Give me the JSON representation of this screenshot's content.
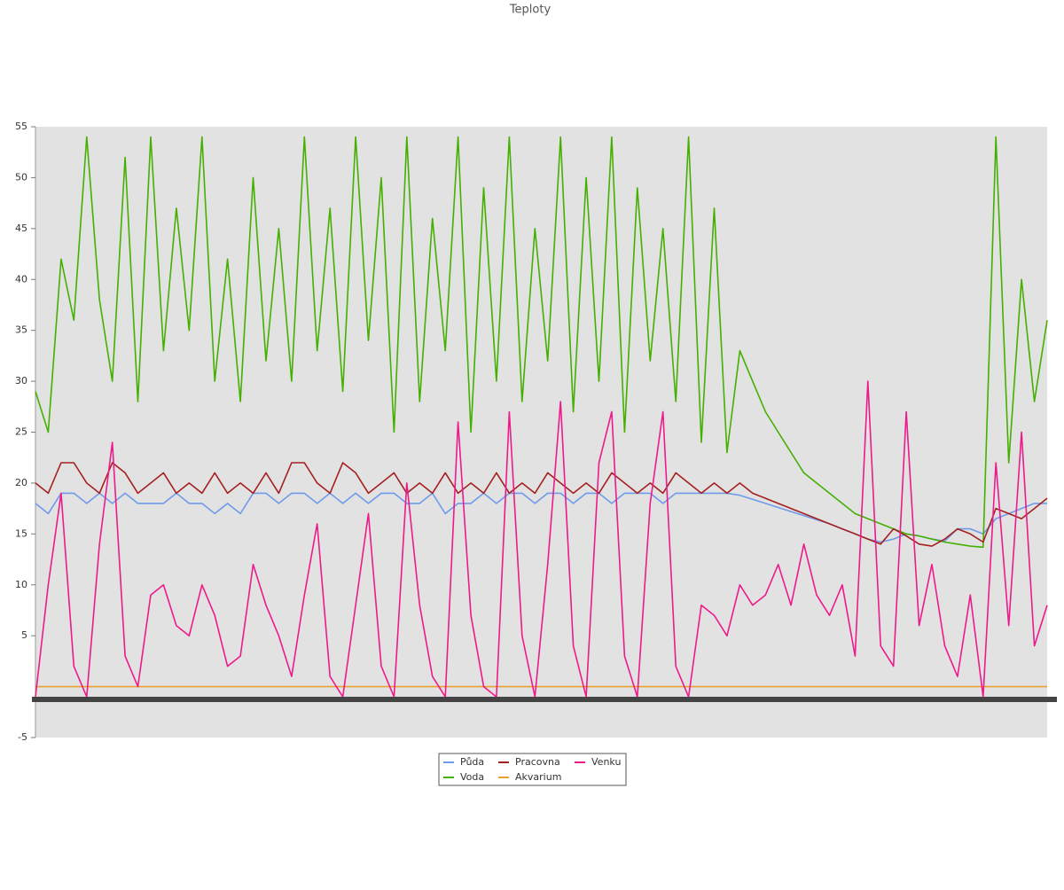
{
  "chart_data": {
    "type": "line",
    "title": "Teploty",
    "ylim": [
      -5,
      55
    ],
    "yticks": [
      -5,
      5,
      10,
      15,
      20,
      25,
      30,
      35,
      40,
      45,
      50,
      55
    ],
    "legend": "bottom",
    "series": [
      {
        "name": "Půda",
        "color": "#6f9bea",
        "values": [
          18,
          17,
          19,
          19,
          18,
          19,
          18,
          19,
          18,
          18,
          18,
          19,
          18,
          18,
          17,
          18,
          17,
          19,
          19,
          18,
          19,
          19,
          18,
          19,
          18,
          19,
          18,
          19,
          19,
          18,
          18,
          19,
          17,
          18,
          18,
          19,
          18,
          19,
          19,
          18,
          19,
          19,
          18,
          19,
          19,
          18,
          19,
          19,
          19,
          18,
          19,
          19,
          19,
          19,
          19,
          18.8,
          18.4,
          18,
          17.6,
          17.2,
          16.8,
          16.4,
          16,
          15.5,
          15,
          14.5,
          14.2,
          14.5,
          15,
          14.8,
          14.5,
          14.3,
          15.5,
          15.5,
          15,
          16.5,
          17,
          17.5,
          18,
          18
        ]
      },
      {
        "name": "Voda",
        "color": "#44b000",
        "values": [
          29,
          25,
          42,
          36,
          54,
          38,
          30,
          52,
          28,
          54,
          33,
          47,
          35,
          54,
          30,
          42,
          28,
          50,
          32,
          45,
          30,
          54,
          33,
          47,
          29,
          54,
          34,
          50,
          25,
          54,
          28,
          46,
          33,
          54,
          25,
          49,
          30,
          54,
          28,
          45,
          32,
          54,
          27,
          50,
          30,
          54,
          25,
          49,
          32,
          45,
          28,
          54,
          24,
          47,
          23,
          33,
          30,
          27,
          25,
          23,
          21,
          20,
          19,
          18,
          17,
          16.5,
          16,
          15.5,
          15,
          14.8,
          14.5,
          14.2,
          14,
          13.8,
          13.7,
          54,
          22,
          40,
          28,
          36
        ]
      },
      {
        "name": "Pracovna",
        "color": "#a52020",
        "values": [
          20,
          19,
          22,
          22,
          20,
          19,
          22,
          21,
          19,
          20,
          21,
          19,
          20,
          19,
          21,
          19,
          20,
          19,
          21,
          19,
          22,
          22,
          20,
          19,
          22,
          21,
          19,
          20,
          21,
          19,
          20,
          19,
          21,
          19,
          20,
          19,
          21,
          19,
          20,
          19,
          21,
          20,
          19,
          20,
          19,
          21,
          20,
          19,
          20,
          19,
          21,
          20,
          19,
          20,
          19,
          20,
          19,
          18.5,
          18,
          17.5,
          17,
          16.5,
          16,
          15.5,
          15,
          14.5,
          14,
          15.5,
          14.8,
          14,
          13.8,
          14.5,
          15.5,
          15,
          14.2,
          17.5,
          17,
          16.5,
          17.5,
          18.5
        ]
      },
      {
        "name": "Akvarium",
        "color": "#e8a030",
        "values": [
          0,
          0,
          0,
          0,
          0,
          0,
          0,
          0,
          0,
          0,
          0,
          0,
          0,
          0,
          0,
          0,
          0,
          0,
          0,
          0,
          0,
          0,
          0,
          0,
          0,
          0,
          0,
          0,
          0,
          0,
          0,
          0,
          0,
          0,
          0,
          0,
          0,
          0,
          0,
          0,
          0,
          0,
          0,
          0,
          0,
          0,
          0,
          0,
          0,
          0,
          0,
          0,
          0,
          0,
          0,
          0,
          0,
          0,
          0,
          0,
          0,
          0,
          0,
          0,
          0,
          0,
          0,
          0,
          0,
          0,
          0,
          0,
          0,
          0,
          0,
          0,
          0,
          0,
          0,
          0
        ]
      },
      {
        "name": "Venku",
        "color": "#ee1a8c",
        "values": [
          -1,
          10,
          19,
          2,
          -1,
          14,
          24,
          3,
          0,
          9,
          10,
          6,
          5,
          10,
          7,
          2,
          3,
          12,
          8,
          5,
          1,
          9,
          16,
          1,
          -1,
          8,
          17,
          2,
          -1,
          20,
          8,
          1,
          -1,
          26,
          7,
          0,
          -1,
          27,
          5,
          -1,
          12,
          28,
          4,
          -1,
          22,
          27,
          3,
          -1,
          18,
          27,
          2,
          -1,
          8,
          7,
          5,
          10,
          8,
          9,
          12,
          8,
          14,
          9,
          7,
          10,
          3,
          30,
          4,
          2,
          27,
          6,
          12,
          4,
          1,
          9,
          -1,
          22,
          6,
          25,
          4,
          8
        ]
      }
    ]
  }
}
